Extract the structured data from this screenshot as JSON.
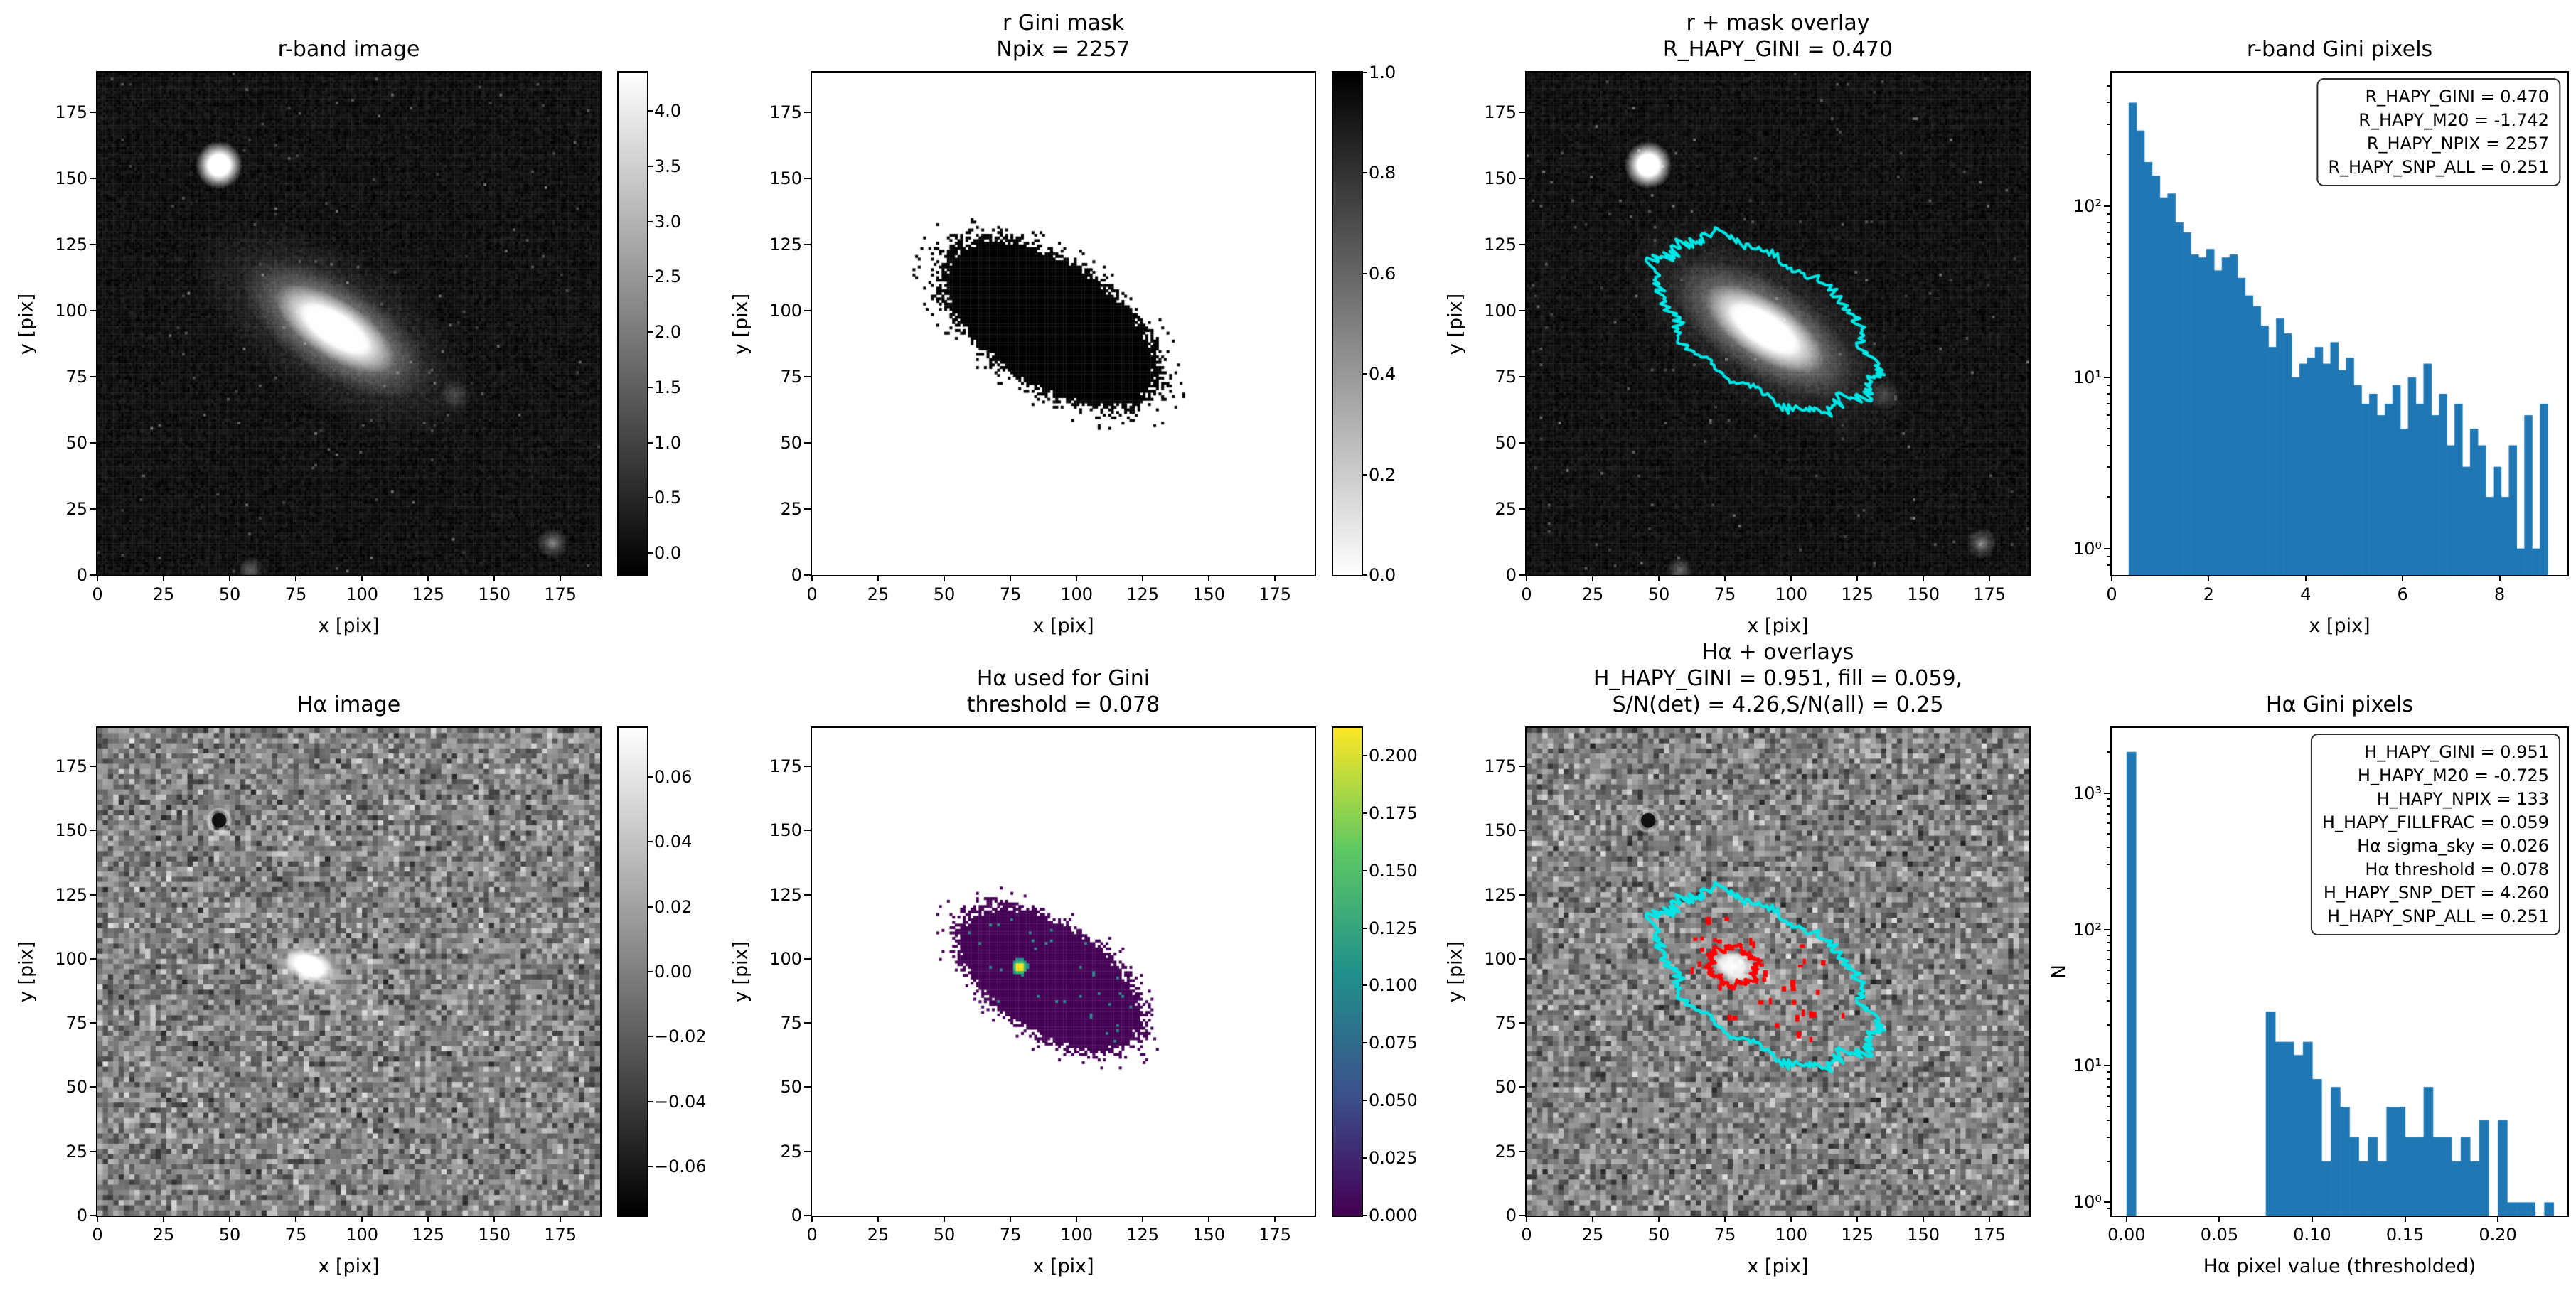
{
  "figure": {
    "background": "#ffffff"
  },
  "colors": {
    "hist_bar": "#1f77b4",
    "contour_cyan": "#00e5e5",
    "contour_red": "#ff0000",
    "mask_fill": "#000000",
    "viridis_low": "#440154",
    "viridis_teal": "#21918c",
    "viridis_green": "#35b779",
    "viridis_yellow": "#fde725"
  },
  "panels": {
    "r_image": {
      "title_lines": [
        "r-band image"
      ],
      "xlabel": "x [pix]",
      "ylabel": "y [pix]",
      "xtick_labels": [
        "0",
        "25",
        "50",
        "75",
        "100",
        "125",
        "150",
        "175"
      ],
      "ytick_labels": [
        "0",
        "25",
        "50",
        "75",
        "100",
        "125",
        "150",
        "175"
      ],
      "colorbar_tick_labels": [
        "4.0",
        "3.5",
        "3.0",
        "2.5",
        "2.0",
        "1.5",
        "1.0",
        "0.5",
        "0.0"
      ]
    },
    "r_mask": {
      "title_lines": [
        "r Gini mask",
        "Npix = 2257"
      ],
      "xlabel": "x [pix]",
      "ylabel": "y [pix]",
      "xtick_labels": [
        "0",
        "25",
        "50",
        "75",
        "100",
        "125",
        "150",
        "175"
      ],
      "ytick_labels": [
        "0",
        "25",
        "50",
        "75",
        "100",
        "125",
        "150",
        "175"
      ],
      "colorbar_tick_labels": [
        "1.0",
        "0.8",
        "0.6",
        "0.4",
        "0.2",
        "0.0"
      ]
    },
    "r_overlay": {
      "title_lines": [
        "r + mask overlay",
        "R_HAPY_GINI = 0.470"
      ],
      "xlabel": "x [pix]",
      "ylabel": "y [pix]",
      "xtick_labels": [
        "0",
        "25",
        "50",
        "75",
        "100",
        "125",
        "150",
        "175"
      ],
      "ytick_labels": [
        "0",
        "25",
        "50",
        "75",
        "100",
        "125",
        "150",
        "175"
      ]
    },
    "r_hist": {
      "title_lines": [
        "r-band Gini pixels"
      ],
      "xlabel": "x [pix]",
      "xtick_labels": [
        "0",
        "2",
        "4",
        "6",
        "8"
      ],
      "ytick_labels": [
        "10⁰",
        "10¹",
        "10²"
      ],
      "legend_lines": [
        "R_HAPY_GINI = 0.470",
        "R_HAPY_M20 = -1.742",
        "R_HAPY_NPIX = 2257",
        "R_HAPY_SNP_ALL = 0.251"
      ]
    },
    "ha_image": {
      "title_lines": [
        "Hα image"
      ],
      "xlabel": "x [pix]",
      "ylabel": "y [pix]",
      "xtick_labels": [
        "0",
        "25",
        "50",
        "75",
        "100",
        "125",
        "150",
        "175"
      ],
      "ytick_labels": [
        "0",
        "25",
        "50",
        "75",
        "100",
        "125",
        "150",
        "175"
      ],
      "colorbar_tick_labels": [
        "0.06",
        "0.04",
        "0.02",
        "0.00",
        "−0.02",
        "−0.04",
        "−0.06"
      ]
    },
    "ha_gini": {
      "title_lines": [
        "Hα used for Gini",
        "threshold = 0.078"
      ],
      "xlabel": "x [pix]",
      "ylabel": "y [pix]",
      "xtick_labels": [
        "0",
        "25",
        "50",
        "75",
        "100",
        "125",
        "150",
        "175"
      ],
      "ytick_labels": [
        "0",
        "25",
        "50",
        "75",
        "100",
        "125",
        "150",
        "175"
      ],
      "colorbar_tick_labels": [
        "0.200",
        "0.175",
        "0.150",
        "0.125",
        "0.100",
        "0.075",
        "0.050",
        "0.025",
        "0.000"
      ]
    },
    "ha_overlay": {
      "title_lines": [
        "Hα + overlays",
        "H_HAPY_GINI = 0.951, fill = 0.059,",
        "S/N(det) = 4.26,S/N(all) = 0.25"
      ],
      "xlabel": "x [pix]",
      "ylabel": "y [pix]",
      "xtick_labels": [
        "0",
        "25",
        "50",
        "75",
        "100",
        "125",
        "150",
        "175"
      ],
      "ytick_labels": [
        "0",
        "25",
        "50",
        "75",
        "100",
        "125",
        "150",
        "175"
      ]
    },
    "ha_hist": {
      "title_lines": [
        "Hα Gini pixels"
      ],
      "xlabel": "Hα pixel value (thresholded)",
      "ylabel": "N",
      "xtick_labels": [
        "0.00",
        "0.05",
        "0.10",
        "0.15",
        "0.20"
      ],
      "ytick_labels": [
        "10⁰",
        "10¹",
        "10²",
        "10³"
      ],
      "legend_lines": [
        "H_HAPY_GINI = 0.951",
        "H_HAPY_M20 = -0.725",
        "H_HAPY_NPIX = 133",
        "H_HAPY_FILLFRAC = 0.059",
        "Hα sigma_sky = 0.026",
        "Hα threshold = 0.078",
        "H_HAPY_SNP_DET = 4.260",
        "H_HAPY_SNP_ALL = 0.251"
      ]
    }
  },
  "chart_data": [
    {
      "type": "bar",
      "name": "r_hist",
      "title": "r-band Gini pixels",
      "xlabel": "x [pix]",
      "ylabel": "",
      "yscale": "log",
      "bin_start": 0.35,
      "bin_width": 0.16,
      "counts": [
        400,
        275,
        180,
        150,
        112,
        118,
        80,
        70,
        52,
        50,
        56,
        42,
        50,
        52,
        38,
        30,
        26,
        20,
        15,
        22,
        18,
        10,
        12,
        13,
        15,
        12,
        16,
        11,
        13,
        9,
        7,
        8,
        6,
        7,
        9,
        5,
        10,
        7,
        12,
        6,
        8,
        4,
        7,
        3,
        5,
        4,
        2,
        3,
        2,
        4,
        1,
        6,
        1,
        7
      ],
      "xticks": [
        0,
        2,
        4,
        6,
        8
      ],
      "ytick_exps": [
        0,
        1,
        2
      ],
      "xlim": [
        0,
        9.4
      ],
      "ylim": [
        0.7,
        600
      ],
      "legend": {
        "R_HAPY_GINI": 0.47,
        "R_HAPY_M20": -1.742,
        "R_HAPY_NPIX": 2257,
        "R_HAPY_SNP_ALL": 0.251
      }
    },
    {
      "type": "bar",
      "name": "ha_hist",
      "title": "Hα Gini pixels",
      "xlabel": "Hα pixel value (thresholded)",
      "ylabel": "N",
      "yscale": "log",
      "bin_start": 0.0,
      "bin_width": 0.005,
      "counts": [
        2000,
        0,
        0,
        0,
        0,
        0,
        0,
        0,
        0,
        0,
        0,
        0,
        0,
        0,
        0,
        25,
        15,
        15,
        12,
        15,
        8,
        2,
        7,
        5,
        3,
        2,
        3,
        2,
        5,
        5,
        3,
        3,
        7,
        3,
        3,
        2,
        3,
        2,
        4,
        0,
        4,
        1,
        1,
        1,
        0,
        1
      ],
      "xticks": [
        0,
        0.05,
        0.1,
        0.15,
        0.2
      ],
      "ytick_exps": [
        0,
        1,
        2,
        3
      ],
      "xlim": [
        -0.008,
        0.2375
      ],
      "ylim": [
        0.8,
        3000
      ],
      "legend": {
        "H_HAPY_GINI": 0.951,
        "H_HAPY_M20": -0.725,
        "H_HAPY_NPIX": 133,
        "H_HAPY_FILLFRAC": 0.059,
        "Ha_sigma_sky": 0.026,
        "Ha_threshold": 0.078,
        "H_HAPY_SNP_DET": 4.26,
        "H_HAPY_SNP_ALL": 0.251
      }
    }
  ],
  "colorbars": [
    {
      "panel": "r_image",
      "cmap": "gray",
      "vmin": -0.2,
      "vmax": 4.35
    },
    {
      "panel": "r_mask",
      "cmap": "gray_inv",
      "vmin": 0.0,
      "vmax": 1.0
    },
    {
      "panel": "ha_image",
      "cmap": "gray",
      "vmin": -0.075,
      "vmax": 0.075
    },
    {
      "panel": "ha_gini",
      "cmap": "viridis",
      "vmin": 0.0,
      "vmax": 0.212
    }
  ]
}
